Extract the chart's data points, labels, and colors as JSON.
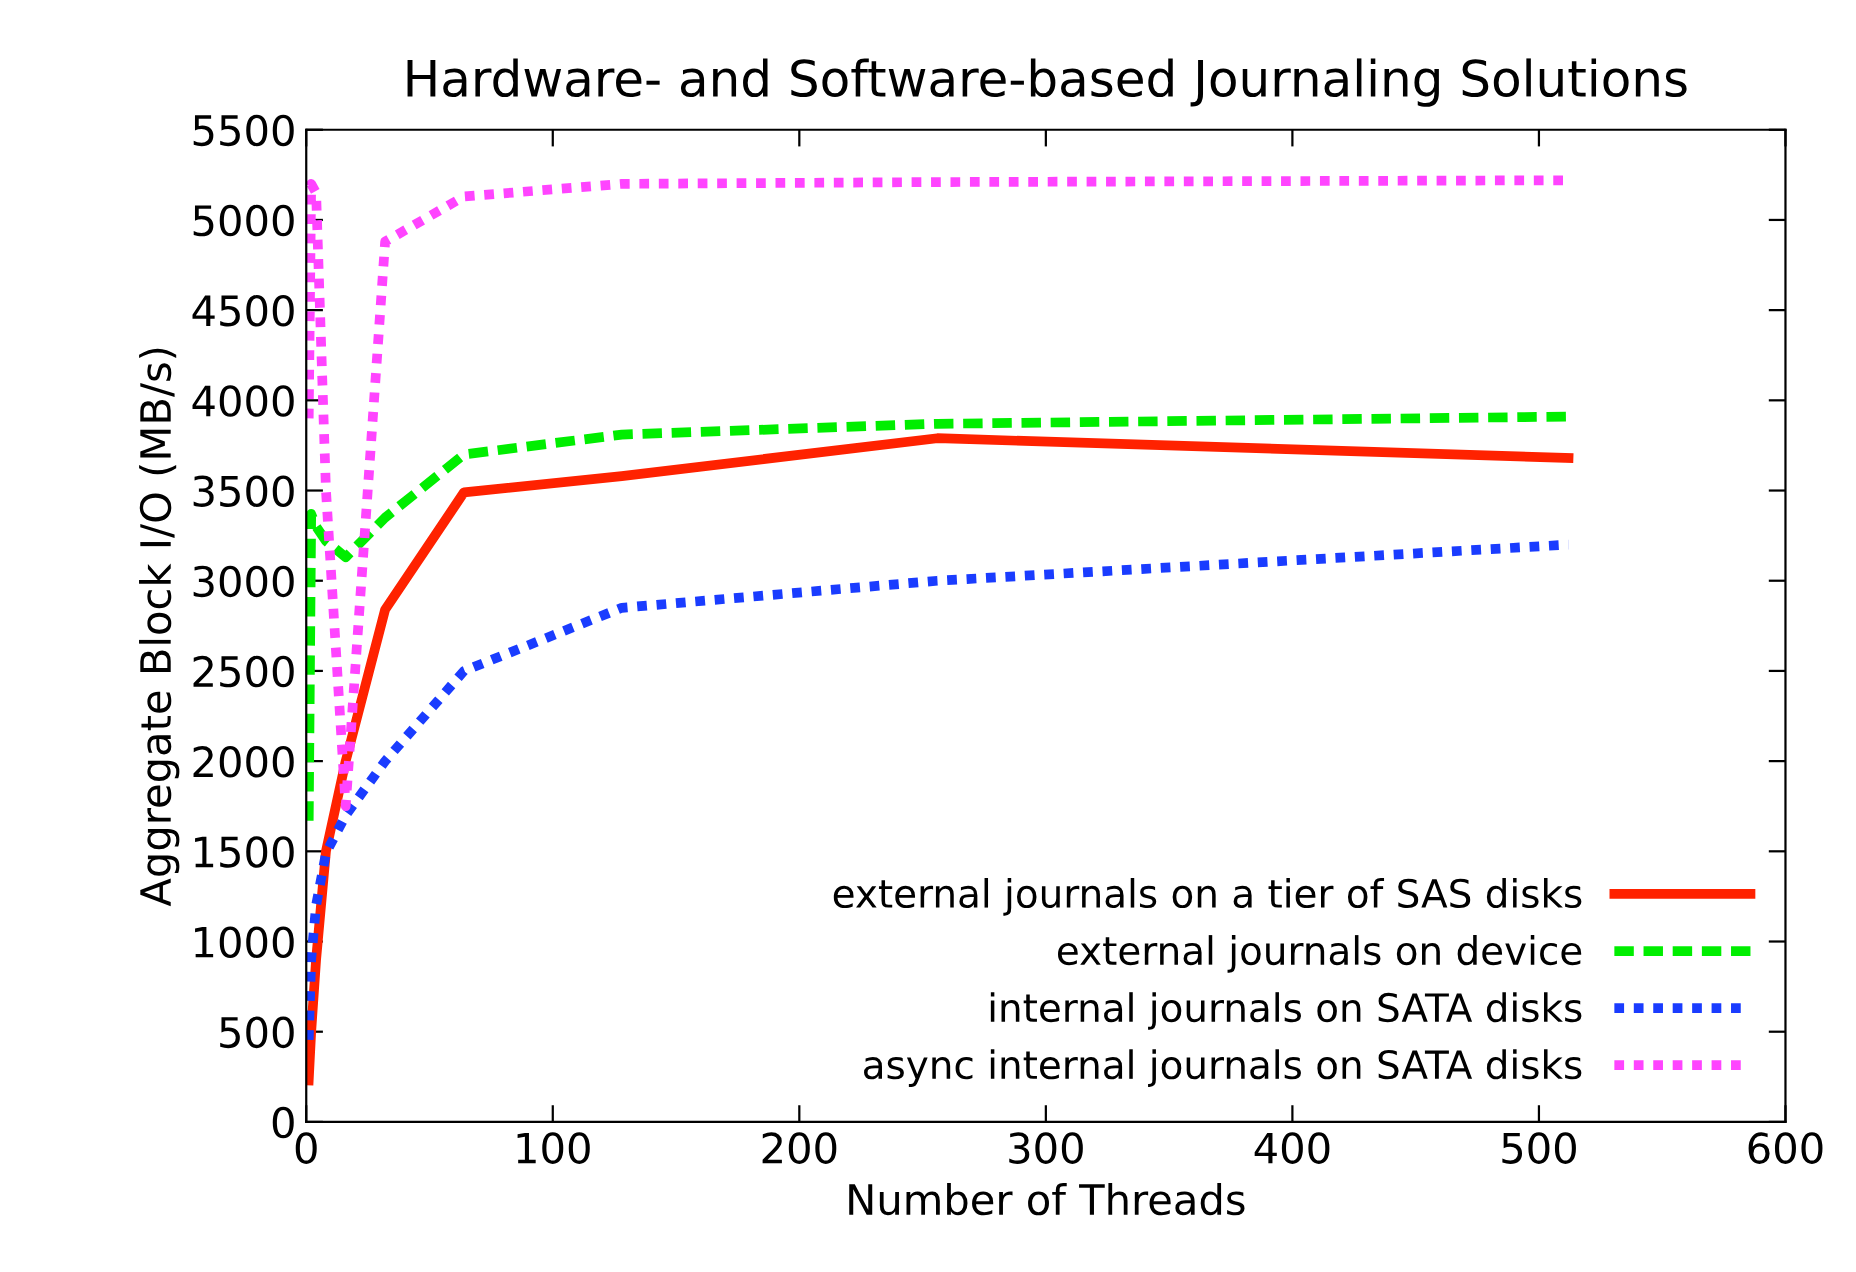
{
  "chart_data": {
    "type": "line",
    "title": "Hardware- and Software-based Journaling Solutions",
    "xlabel": "Number of Threads",
    "ylabel": "Aggregate Block I/O (MB/s)",
    "x": [
      1,
      2,
      4,
      8,
      16,
      32,
      64,
      128,
      256,
      512
    ],
    "series": [
      {
        "name": "external journals on a tier of SAS disks",
        "color": "#ff2200",
        "line_style": "solid",
        "values": [
          230,
          500,
          900,
          1500,
          2000,
          2840,
          3490,
          3580,
          3790,
          3680
        ]
      },
      {
        "name": "external journals on device",
        "color": "#00ee00",
        "line_style": "dashed",
        "values": [
          1670,
          3370,
          3300,
          3220,
          3130,
          3350,
          3700,
          3810,
          3870,
          3910
        ]
      },
      {
        "name": "internal journals on SATA disks",
        "color": "#1a3cff",
        "line_style": "dotted",
        "values": [
          455,
          900,
          1200,
          1490,
          1700,
          2000,
          2500,
          2850,
          3000,
          3200
        ]
      },
      {
        "name": "async internal journals on SATA disks",
        "color": "#ff44ff",
        "line_style": "dotted",
        "values": [
          3900,
          5200,
          5150,
          3500,
          1750,
          4880,
          5130,
          5200,
          5210,
          5220
        ]
      }
    ],
    "xlim": [
      0,
      600
    ],
    "xticks": [
      0,
      100,
      200,
      300,
      400,
      500,
      600
    ],
    "ylim": [
      0,
      5500
    ],
    "yticks": [
      0,
      500,
      1000,
      1500,
      2000,
      2500,
      3000,
      3500,
      4000,
      4500,
      5000,
      5500
    ],
    "grid": false,
    "legend": "bottom right",
    "marker": "none"
  }
}
